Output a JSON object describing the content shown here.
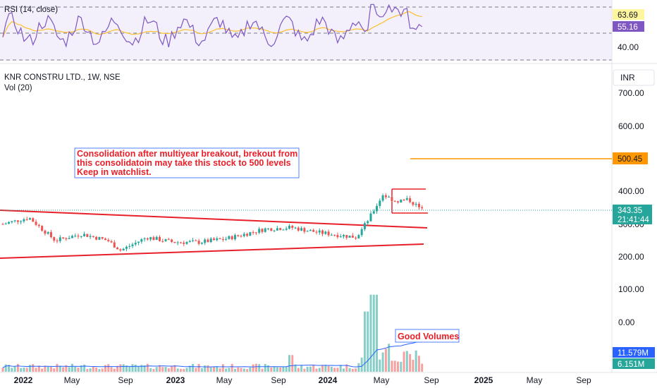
{
  "rsi_panel": {
    "title": "RSI (14, close)",
    "levels": [
      63.69,
      55.16
    ],
    "level_labels": [
      "63.69",
      "55.16"
    ],
    "tick_label": "40.00",
    "colors": {
      "rsi": "#7e57c2",
      "ma": "#fbc02d",
      "badge_rsi": "#7e57c2",
      "badge_ma": "#fff59d",
      "band": "#f3effb"
    }
  },
  "main_panel": {
    "title": "KNR CONSTRU LTD., 1W, NSE",
    "vol_title": "Vol (20)",
    "currency_button": "INR",
    "price_ticks": [
      "700.00",
      "600.00",
      "400.00",
      "300.00",
      "200.00",
      "100.00",
      "0.00"
    ],
    "last_price": "343.35",
    "countdown": "21:41:44",
    "target_label": "500.45",
    "vol_labels": [
      "11.579M",
      "6.151M"
    ],
    "annotation": {
      "lines": [
        "Consolidation after multiyear breakout, brekout from",
        "this consolidatoin may take this stock to 500 levels",
        "Keep in watchlist."
      ]
    },
    "volume_note": "Good Volumes",
    "colors": {
      "up": "#26a69a",
      "down": "#ef5350",
      "trend": "#e8202a",
      "target": "#ff9800",
      "last": "#26a69a",
      "vol_ma": "#2962ff"
    }
  },
  "time_axis": {
    "labels": [
      "2022",
      "May",
      "Sep",
      "2023",
      "May",
      "Sep",
      "2024",
      "May",
      "Sep",
      "2025",
      "May",
      "Sep"
    ]
  },
  "chart_data": {
    "type": "candlestick",
    "title": "KNR CONSTRU LTD., 1W, NSE",
    "x_range": [
      "2022-01",
      "2025-09"
    ],
    "ylim": [
      0,
      750
    ],
    "series": [
      {
        "name": "RSI (14, close)",
        "last": 55.16
      },
      {
        "name": "RSI MA",
        "last": 63.69
      },
      {
        "name": "Vol (20)",
        "values_last": [
          11.579,
          6.151
        ],
        "unit": "M"
      }
    ],
    "key_levels": {
      "target": 500.45,
      "last_close": 343.35,
      "consolidation_top": 400,
      "consolidation_bottom": 330
    },
    "price_path": [
      {
        "x": "2022-01",
        "y": 300
      },
      {
        "x": "2022-03",
        "y": 320
      },
      {
        "x": "2022-05",
        "y": 250
      },
      {
        "x": "2022-07",
        "y": 270
      },
      {
        "x": "2022-09",
        "y": 250
      },
      {
        "x": "2022-10",
        "y": 220
      },
      {
        "x": "2022-12",
        "y": 260
      },
      {
        "x": "2023-02",
        "y": 245
      },
      {
        "x": "2023-04",
        "y": 245
      },
      {
        "x": "2023-06",
        "y": 255
      },
      {
        "x": "2023-09",
        "y": 285
      },
      {
        "x": "2023-11",
        "y": 290
      },
      {
        "x": "2024-01",
        "y": 275
      },
      {
        "x": "2024-03",
        "y": 265
      },
      {
        "x": "2024-04",
        "y": 260
      },
      {
        "x": "2024-05",
        "y": 320
      },
      {
        "x": "2024-06",
        "y": 390
      },
      {
        "x": "2024-07",
        "y": 370
      },
      {
        "x": "2024-08",
        "y": 375
      },
      {
        "x": "2024-09",
        "y": 343.35
      }
    ]
  }
}
